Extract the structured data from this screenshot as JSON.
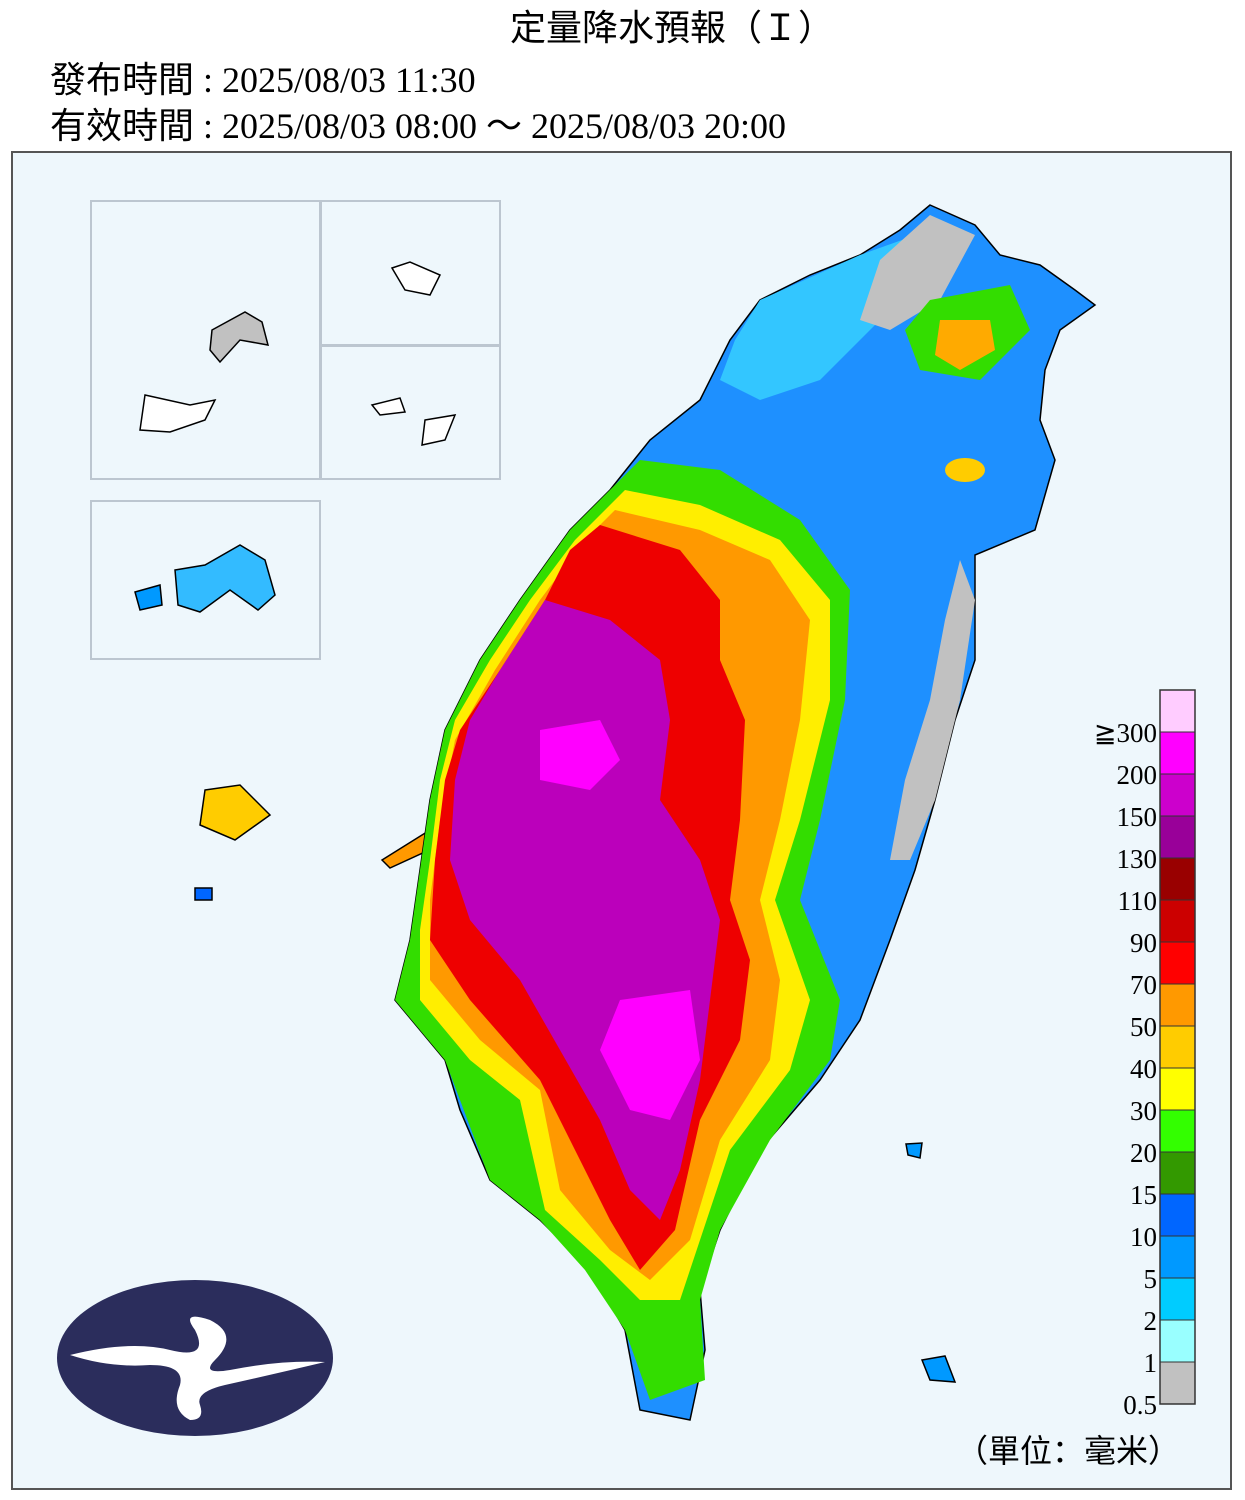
{
  "header": {
    "title": "定量降水預報（Ｉ）",
    "issued": "發布時間 : 2025/08/03 11:30",
    "valid": "有效時間 : 2025/08/03 08:00 ～ 2025/08/03 20:00"
  },
  "legend": {
    "labels": [
      "0.5",
      "1",
      "2",
      "5",
      "10",
      "15",
      "20",
      "30",
      "40",
      "50",
      "70",
      "90",
      "110",
      "130",
      "150",
      "200",
      "≧300"
    ],
    "colors": [
      "#c1c1c1",
      "#99ffff",
      "#00ccff",
      "#0099ff",
      "#0066ff",
      "#339900",
      "#33ff00",
      "#ffff00",
      "#ffcc00",
      "#ff9900",
      "#ff0000",
      "#cc0000",
      "#990000",
      "#990099",
      "#cc00cc",
      "#ff00ff",
      "#ffccff"
    ],
    "unit": "（單位：毫米）"
  }
}
